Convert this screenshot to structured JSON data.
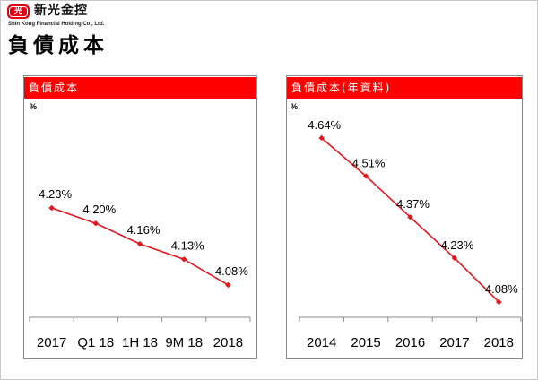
{
  "logo": {
    "mark": "光",
    "name": "新光金控",
    "english": "Shin Kong Financial Holding Co., Ltd."
  },
  "page": {
    "title": "負債成本"
  },
  "colors": {
    "header_bg": "#ff0000",
    "brand_red": "#e60012",
    "axis": "#8c8c8c"
  },
  "chart_data": [
    {
      "type": "line",
      "title": "負債成本",
      "ylabel": "%",
      "categories": [
        "2017",
        "Q1 18",
        "1H 18",
        "9M 18",
        "2018"
      ],
      "values": [
        4.23,
        4.2,
        4.16,
        4.13,
        4.08
      ],
      "labels": [
        "4.23%",
        "4.20%",
        "4.16%",
        "4.13%",
        "4.08%"
      ],
      "ylim": [
        4.0,
        4.4
      ],
      "grid": false,
      "color": "#e8141b"
    },
    {
      "type": "line",
      "title": "負債成本(年資料)",
      "ylabel": "%",
      "categories": [
        "2014",
        "2015",
        "2016",
        "2017",
        "2018"
      ],
      "values": [
        4.64,
        4.51,
        4.37,
        4.23,
        4.08
      ],
      "labels": [
        "4.64%",
        "4.51%",
        "4.37%",
        "4.23%",
        "4.08%"
      ],
      "ylim": [
        4.0,
        4.8
      ],
      "grid": false,
      "color": "#e8141b"
    }
  ]
}
